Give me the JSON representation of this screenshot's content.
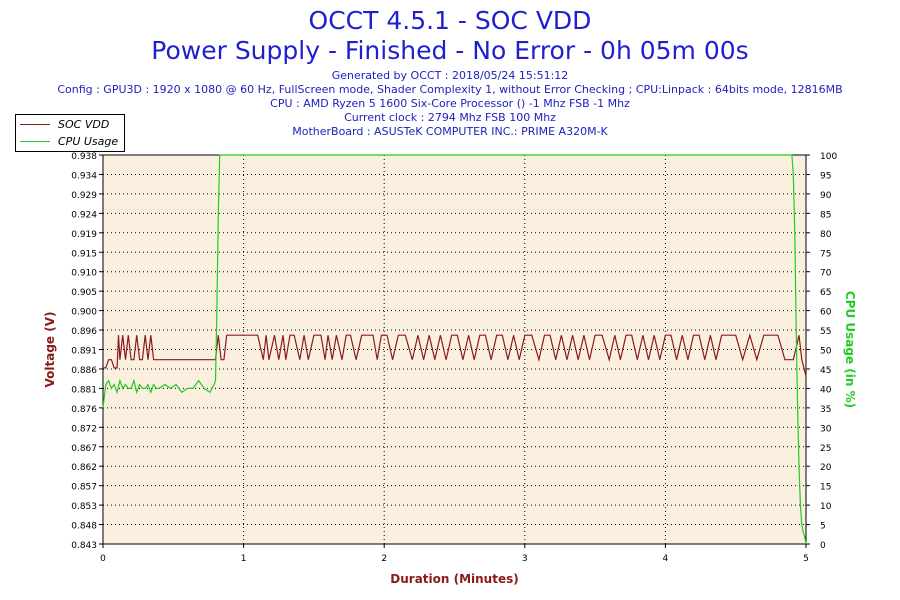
{
  "header": {
    "title": "OCCT 4.5.1 - SOC VDD",
    "subtitle": "Power Supply - Finished - No Error - 0h 05m 00s",
    "generated": "Generated by OCCT : 2018/05/24 15:51:12",
    "config": "Config : GPU3D : 1920 x 1080 @ 60 Hz, FullScreen mode, Shader Complexity 1, without Error Checking ; CPU:Linpack : 64bits mode, 12816MB",
    "cpu": "CPU : AMD Ryzen 5 1600 Six-Core Processor () -1 Mhz FSB -1 Mhz",
    "clock": "Current clock : 2794 Mhz FSB 100 Mhz",
    "motherboard": "MotherBoard : ASUSTeK COMPUTER INC.: PRIME A320M-K"
  },
  "colors": {
    "title": "#1f1fcf",
    "voltage": "#8b1a1a",
    "cpu": "#22cc22",
    "plot_bg": "#fbf0e0",
    "grid": "#000000"
  },
  "chart_data": {
    "type": "line",
    "xlabel": "Duration (Minutes)",
    "ylabel": "Voltage (V)",
    "y2label": "CPU Usage (in %)",
    "xlim": [
      0,
      5
    ],
    "ylim": [
      0.843,
      0.938
    ],
    "y2lim": [
      0,
      100
    ],
    "x_ticks": [
      "0",
      "1",
      "2",
      "3",
      "4",
      "5"
    ],
    "y_ticks": [
      "0.843",
      "0.848",
      "0.853",
      "0.857",
      "0.862",
      "0.867",
      "0.872",
      "0.876",
      "0.881",
      "0.886",
      "0.891",
      "0.896",
      "0.900",
      "0.905",
      "0.910",
      "0.915",
      "0.919",
      "0.924",
      "0.929",
      "0.934",
      "0.938"
    ],
    "y2_ticks": [
      "0",
      "5",
      "10",
      "15",
      "20",
      "25",
      "30",
      "35",
      "40",
      "45",
      "50",
      "55",
      "60",
      "65",
      "70",
      "75",
      "80",
      "85",
      "90",
      "95",
      "100"
    ],
    "grid": true,
    "legend_position": "top-left",
    "series": [
      {
        "name": "SOC VDD",
        "axis": "left",
        "x": [
          0.0,
          0.02,
          0.04,
          0.06,
          0.08,
          0.1,
          0.11,
          0.12,
          0.14,
          0.16,
          0.18,
          0.2,
          0.22,
          0.24,
          0.26,
          0.28,
          0.3,
          0.32,
          0.34,
          0.36,
          0.4,
          0.5,
          0.6,
          0.7,
          0.78,
          0.8,
          0.82,
          0.84,
          0.86,
          0.88,
          0.9,
          0.92,
          0.94,
          0.96,
          0.98,
          1.0,
          1.05,
          1.1,
          1.14,
          1.16,
          1.18,
          1.22,
          1.25,
          1.28,
          1.3,
          1.33,
          1.36,
          1.4,
          1.43,
          1.46,
          1.5,
          1.55,
          1.58,
          1.6,
          1.63,
          1.66,
          1.7,
          1.73,
          1.76,
          1.8,
          1.84,
          1.88,
          1.92,
          1.95,
          1.98,
          2.02,
          2.06,
          2.1,
          2.15,
          2.2,
          2.24,
          2.28,
          2.32,
          2.36,
          2.4,
          2.44,
          2.48,
          2.52,
          2.56,
          2.6,
          2.64,
          2.68,
          2.72,
          2.76,
          2.8,
          2.84,
          2.88,
          2.92,
          2.96,
          3.0,
          3.05,
          3.1,
          3.14,
          3.18,
          3.22,
          3.26,
          3.3,
          3.34,
          3.38,
          3.42,
          3.46,
          3.5,
          3.55,
          3.6,
          3.64,
          3.68,
          3.72,
          3.76,
          3.8,
          3.84,
          3.88,
          3.92,
          3.96,
          4.0,
          4.04,
          4.08,
          4.12,
          4.16,
          4.2,
          4.24,
          4.28,
          4.32,
          4.36,
          4.4,
          4.45,
          4.5,
          4.55,
          4.6,
          4.65,
          4.7,
          4.75,
          4.8,
          4.85,
          4.88,
          4.91,
          4.93,
          4.95,
          4.97,
          5.0
        ],
        "values": [
          0.886,
          0.886,
          0.888,
          0.888,
          0.886,
          0.886,
          0.894,
          0.888,
          0.894,
          0.888,
          0.894,
          0.888,
          0.888,
          0.894,
          0.888,
          0.888,
          0.894,
          0.888,
          0.894,
          0.888,
          0.888,
          0.888,
          0.888,
          0.888,
          0.888,
          0.888,
          0.894,
          0.888,
          0.888,
          0.894,
          0.894,
          0.894,
          0.894,
          0.894,
          0.894,
          0.894,
          0.894,
          0.894,
          0.888,
          0.894,
          0.888,
          0.894,
          0.888,
          0.894,
          0.888,
          0.894,
          0.894,
          0.888,
          0.894,
          0.888,
          0.894,
          0.894,
          0.888,
          0.894,
          0.888,
          0.894,
          0.888,
          0.894,
          0.894,
          0.888,
          0.894,
          0.894,
          0.894,
          0.888,
          0.894,
          0.894,
          0.888,
          0.894,
          0.894,
          0.888,
          0.894,
          0.888,
          0.894,
          0.888,
          0.894,
          0.888,
          0.894,
          0.894,
          0.888,
          0.894,
          0.888,
          0.894,
          0.894,
          0.888,
          0.894,
          0.894,
          0.888,
          0.894,
          0.888,
          0.894,
          0.894,
          0.888,
          0.894,
          0.894,
          0.888,
          0.894,
          0.888,
          0.894,
          0.888,
          0.894,
          0.888,
          0.894,
          0.894,
          0.888,
          0.894,
          0.888,
          0.894,
          0.894,
          0.888,
          0.894,
          0.888,
          0.894,
          0.888,
          0.894,
          0.894,
          0.888,
          0.894,
          0.888,
          0.894,
          0.894,
          0.888,
          0.894,
          0.888,
          0.894,
          0.894,
          0.894,
          0.888,
          0.894,
          0.888,
          0.894,
          0.894,
          0.894,
          0.888,
          0.888,
          0.888,
          0.891,
          0.894,
          0.888,
          0.884
        ]
      },
      {
        "name": "CPU Usage",
        "axis": "right",
        "x": [
          0.0,
          0.01,
          0.02,
          0.04,
          0.06,
          0.08,
          0.1,
          0.12,
          0.14,
          0.16,
          0.18,
          0.2,
          0.22,
          0.24,
          0.26,
          0.28,
          0.3,
          0.32,
          0.34,
          0.36,
          0.38,
          0.4,
          0.44,
          0.48,
          0.52,
          0.56,
          0.6,
          0.64,
          0.68,
          0.72,
          0.76,
          0.79,
          0.8,
          0.81,
          0.82,
          0.83,
          1.0,
          2.0,
          3.0,
          4.0,
          4.9,
          4.91,
          4.92,
          4.93,
          4.94,
          4.95,
          4.96,
          4.97,
          4.98,
          4.99,
          5.0
        ],
        "values": [
          35,
          38,
          41,
          42,
          40,
          41,
          39,
          42,
          40,
          41,
          40,
          40,
          42,
          39,
          41,
          40,
          40,
          41,
          39,
          41,
          40,
          40,
          41,
          40,
          41,
          39,
          40,
          40,
          42,
          40,
          39,
          41,
          42,
          60,
          85,
          100,
          100,
          100,
          100,
          100,
          100,
          95,
          80,
          55,
          35,
          20,
          10,
          5,
          3,
          2,
          0
        ]
      }
    ]
  }
}
